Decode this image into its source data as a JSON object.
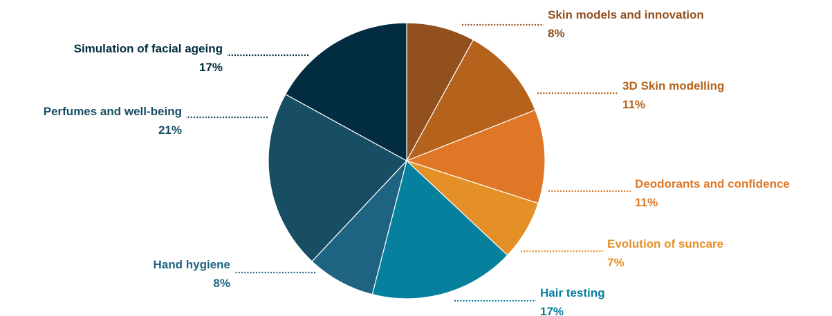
{
  "chart_data": {
    "type": "pie",
    "title": "",
    "start_angle_deg": 0,
    "direction": "clockwise",
    "slices": [
      {
        "label": "Skin models and innovation",
        "percent_label": "8%",
        "value": 8,
        "color": "#93501f"
      },
      {
        "label": "3D Skin modelling",
        "percent_label": "11%",
        "value": 11,
        "color": "#b5631c"
      },
      {
        "label": "Deodorants and confidence",
        "percent_label": "11%",
        "value": 11,
        "color": "#df7727"
      },
      {
        "label": "Evolution of suncare",
        "percent_label": "7%",
        "value": 7,
        "color": "#e59026"
      },
      {
        "label": "Hair testing",
        "percent_label": "17%",
        "value": 17,
        "color": "#06809c"
      },
      {
        "label": "Hand hygiene",
        "percent_label": "8%",
        "value": 8,
        "color": "#1e6482"
      },
      {
        "label": "Perfumes and well-being",
        "percent_label": "21%",
        "value": 21,
        "color": "#184e64"
      },
      {
        "label": "Simulation of facial ageing",
        "percent_label": "17%",
        "value": 17,
        "color": "#022c40"
      }
    ]
  }
}
